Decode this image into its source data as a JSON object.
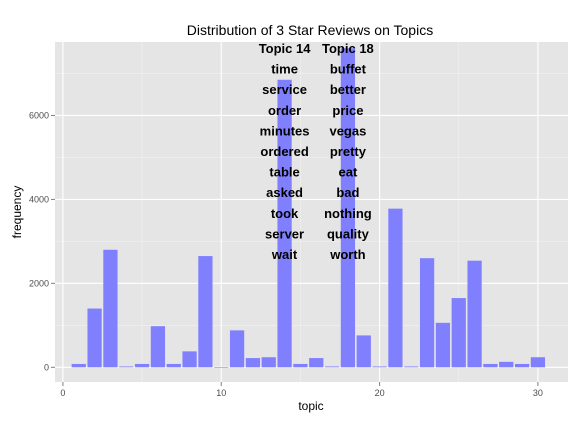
{
  "chart_data": {
    "type": "bar",
    "title": "Distribution of 3 Star Reviews on Topics",
    "xlabel": "topic",
    "ylabel": "frequency",
    "xlim": [
      -0.5,
      31.9
    ],
    "ylim": [
      -350,
      7750
    ],
    "xticks": [
      0,
      10,
      20,
      30
    ],
    "yticks": [
      0,
      2000,
      4000,
      6000
    ],
    "grid": true,
    "bar_color": "#8080ff",
    "panel_color": "#e5e5e5",
    "x": [
      1,
      2,
      3,
      4,
      5,
      6,
      7,
      8,
      9,
      10,
      11,
      12,
      13,
      14,
      15,
      16,
      17,
      18,
      19,
      20,
      21,
      22,
      23,
      24,
      25,
      26,
      27,
      28,
      29,
      30
    ],
    "values": [
      80,
      1400,
      2800,
      20,
      80,
      980,
      80,
      380,
      2650,
      0,
      880,
      220,
      240,
      6850,
      80,
      220,
      20,
      7600,
      760,
      20,
      3780,
      20,
      2600,
      1060,
      1650,
      2540,
      80,
      130,
      80,
      240
    ],
    "annotations": [
      {
        "topic": 14,
        "lines": [
          "Topic 14",
          "time",
          "service",
          "order",
          "minutes",
          "ordered",
          "table",
          "asked",
          "took",
          "server",
          "wait"
        ]
      },
      {
        "topic": 18,
        "lines": [
          "Topic 18",
          "buffet",
          "better",
          "price",
          "vegas",
          "pretty",
          "eat",
          "bad",
          "nothing",
          "quality",
          "worth"
        ]
      }
    ]
  }
}
